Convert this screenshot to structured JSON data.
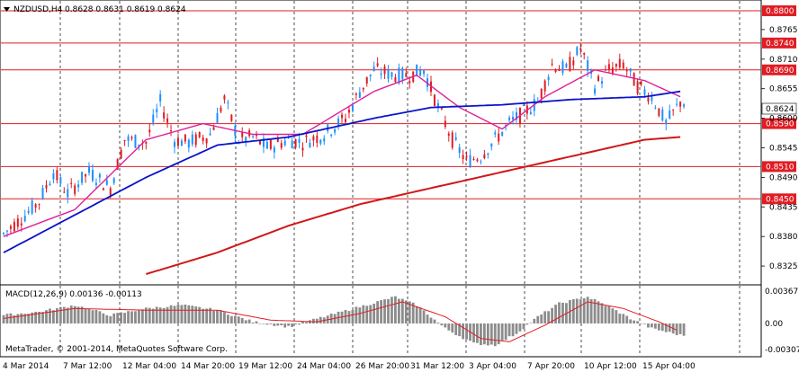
{
  "header": {
    "symbol": "NZDUSD,H4",
    "ohlc": "0.8628 0.8631 0.8619 0.8624"
  },
  "macd": {
    "label": "MACD(12,26,9) 0.00136 -0.00113",
    "axis_labels": [
      "0.00367",
      "0.00",
      "-0.00307"
    ]
  },
  "copyright": "MetaTrader, © 2001-2014, MetaQuotes Software Corp.",
  "price_axis": {
    "ticks": [
      "0.8765",
      "0.8710",
      "0.8655",
      "0.8600",
      "0.8545",
      "0.8490",
      "0.8435",
      "0.8380",
      "0.8325"
    ]
  },
  "levels": [
    {
      "label": "0.8800",
      "value": 0.88
    },
    {
      "label": "0.8740",
      "value": 0.874
    },
    {
      "label": "0.8690",
      "value": 0.869
    },
    {
      "label": "0.8590",
      "value": 0.859
    },
    {
      "label": "0.8510",
      "value": 0.851
    },
    {
      "label": "0.8450",
      "value": 0.845
    }
  ],
  "current_price": "0.8624",
  "time_axis": {
    "labels": [
      "4 Mar 2014",
      "7 Mar 12:00",
      "12 Mar 04:00",
      "14 Mar 20:00",
      "19 Mar 12:00",
      "24 Mar 04:00",
      "26 Mar 20:00",
      "31 Mar 12:00",
      "3 Apr 04:00",
      "7 Apr 20:00",
      "10 Apr 12:00",
      "15 Apr 04:00"
    ]
  },
  "colors": {
    "bull": "#1e90ff",
    "bear": "#e01c24",
    "level": "#e01c24",
    "ma_fast": "#e0209a",
    "ma_mid": "#0b14c8",
    "ma_slow": "#d01818",
    "macd_hist": "#8c8c8c",
    "macd_signal": "#e01c24"
  },
  "chart_data": {
    "type": "candlestick",
    "title": "NZDUSD,H4",
    "y_range": [
      0.829,
      0.882
    ],
    "close_path": [
      [
        0,
        0.8385
      ],
      [
        6,
        0.842
      ],
      [
        10,
        0.8445
      ],
      [
        14,
        0.85
      ],
      [
        18,
        0.846
      ],
      [
        24,
        0.85
      ],
      [
        30,
        0.847
      ],
      [
        34,
        0.856
      ],
      [
        40,
        0.8555
      ],
      [
        44,
        0.863
      ],
      [
        48,
        0.856
      ],
      [
        52,
        0.8555
      ],
      [
        58,
        0.857
      ],
      [
        62,
        0.8635
      ],
      [
        66,
        0.856
      ],
      [
        70,
        0.8565
      ],
      [
        74,
        0.8545
      ],
      [
        80,
        0.856
      ],
      [
        84,
        0.8555
      ],
      [
        90,
        0.857
      ],
      [
        96,
        0.86
      ],
      [
        100,
        0.865
      ],
      [
        104,
        0.869
      ],
      [
        110,
        0.868
      ],
      [
        114,
        0.868
      ],
      [
        118,
        0.869
      ],
      [
        122,
        0.862
      ],
      [
        126,
        0.856
      ],
      [
        130,
        0.852
      ],
      [
        134,
        0.853
      ],
      [
        138,
        0.856
      ],
      [
        142,
        0.859
      ],
      [
        146,
        0.861
      ],
      [
        150,
        0.863
      ],
      [
        154,
        0.87
      ],
      [
        158,
        0.869
      ],
      [
        162,
        0.873
      ],
      [
        166,
        0.866
      ],
      [
        170,
        0.869
      ],
      [
        174,
        0.87
      ],
      [
        178,
        0.866
      ],
      [
        182,
        0.864
      ],
      [
        186,
        0.859
      ],
      [
        190,
        0.863
      ]
    ],
    "series": [
      {
        "name": "MA fast",
        "values": [
          [
            0,
            0.838
          ],
          [
            20,
            0.843
          ],
          [
            40,
            0.856
          ],
          [
            56,
            0.859
          ],
          [
            70,
            0.857
          ],
          [
            84,
            0.857
          ],
          [
            104,
            0.865
          ],
          [
            116,
            0.868
          ],
          [
            128,
            0.862
          ],
          [
            140,
            0.858
          ],
          [
            152,
            0.864
          ],
          [
            166,
            0.869
          ],
          [
            180,
            0.867
          ],
          [
            190,
            0.864
          ]
        ]
      },
      {
        "name": "MA mid",
        "values": [
          [
            0,
            0.835
          ],
          [
            20,
            0.842
          ],
          [
            40,
            0.849
          ],
          [
            60,
            0.855
          ],
          [
            80,
            0.8565
          ],
          [
            104,
            0.86
          ],
          [
            120,
            0.862
          ],
          [
            140,
            0.8625
          ],
          [
            160,
            0.8635
          ],
          [
            180,
            0.864
          ],
          [
            190,
            0.865
          ]
        ]
      },
      {
        "name": "MA slow",
        "values": [
          [
            40,
            0.831
          ],
          [
            60,
            0.835
          ],
          [
            80,
            0.84
          ],
          [
            100,
            0.844
          ],
          [
            120,
            0.847
          ],
          [
            140,
            0.85
          ],
          [
            160,
            0.853
          ],
          [
            180,
            0.856
          ],
          [
            190,
            0.8565
          ]
        ]
      }
    ]
  }
}
